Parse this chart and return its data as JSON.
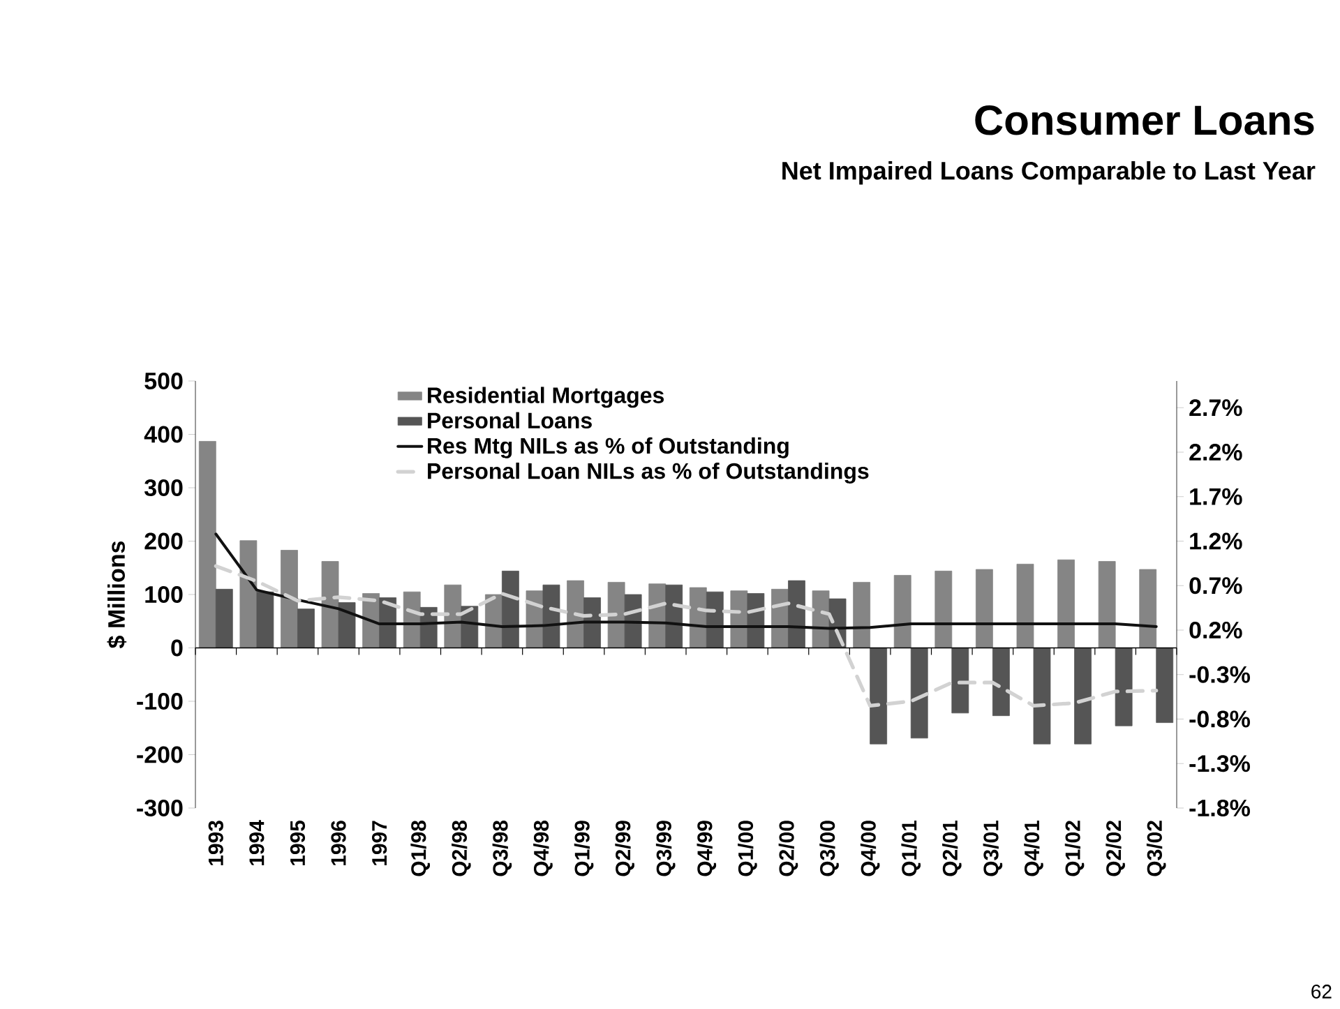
{
  "chart_data": {
    "type": "bar",
    "title": "Consumer Loans",
    "subtitle": "Net Impaired Loans Comparable to Last Year",
    "ylabel": "$ Millions",
    "categories": [
      "1993",
      "1994",
      "1995",
      "1996",
      "1997",
      "Q1/98",
      "Q2/98",
      "Q3/98",
      "Q4/98",
      "Q1/99",
      "Q2/99",
      "Q3/99",
      "Q4/99",
      "Q1/00",
      "Q2/00",
      "Q3/00",
      "Q4/00",
      "Q1/01",
      "Q2/01",
      "Q3/01",
      "Q4/01",
      "Q1/02",
      "Q2/02",
      "Q3/02"
    ],
    "series": [
      {
        "name": "Residential Mortgages",
        "color": "#858585",
        "values": [
          387,
          201,
          183,
          162,
          102,
          105,
          118,
          100,
          107,
          126,
          123,
          120,
          113,
          107,
          110,
          107,
          123,
          136,
          144,
          147,
          157,
          165,
          162,
          147
        ]
      },
      {
        "name": "Personal Loans",
        "color": "#555555",
        "values": [
          110,
          105,
          73,
          85,
          94,
          76,
          78,
          144,
          118,
          94,
          100,
          118,
          105,
          102,
          126,
          92,
          -180,
          -169,
          -122,
          -127,
          -180,
          -180,
          -146,
          -140
        ]
      },
      {
        "name": "Res Mtg NILs as % of Outstanding",
        "type": "line",
        "axis": "y2",
        "color": "#111111",
        "line_style": "solid",
        "values": [
          1.28,
          0.65,
          0.54,
          0.44,
          0.27,
          0.27,
          0.29,
          0.24,
          0.25,
          0.29,
          0.29,
          0.28,
          0.24,
          0.24,
          0.24,
          0.22,
          0.23,
          0.27,
          0.27,
          0.27,
          0.27,
          0.27,
          0.27,
          0.24
        ]
      },
      {
        "name": "Personal Loan NILs as % of Outstandings",
        "type": "line",
        "axis": "y2",
        "color": "#d2d2d2",
        "line_style": "dashed",
        "values": [
          0.92,
          0.75,
          0.53,
          0.57,
          0.53,
          0.38,
          0.38,
          0.61,
          0.46,
          0.36,
          0.38,
          0.5,
          0.42,
          0.4,
          0.5,
          0.38,
          -0.65,
          -0.6,
          -0.39,
          -0.39,
          -0.65,
          -0.62,
          -0.49,
          -0.48
        ]
      }
    ],
    "ylim": [
      -300,
      500
    ],
    "yticks": [
      -300,
      -200,
      -100,
      0,
      100,
      200,
      300,
      400,
      500
    ],
    "y2lim": [
      -1.8,
      3.0
    ],
    "y2ticks": [
      {
        "value": -1.8,
        "label": "-1.8%"
      },
      {
        "value": -1.3,
        "label": "-1.3%"
      },
      {
        "value": -0.8,
        "label": "-0.8%"
      },
      {
        "value": -0.3,
        "label": "-0.3%"
      },
      {
        "value": 0.2,
        "label": "0.2%"
      },
      {
        "value": 0.7,
        "label": "0.7%"
      },
      {
        "value": 1.2,
        "label": "1.2%"
      },
      {
        "value": 1.7,
        "label": "1.7%"
      },
      {
        "value": 2.2,
        "label": "2.2%"
      },
      {
        "value": 2.7,
        "label": "2.7%"
      }
    ],
    "legend": "top",
    "marker": "none",
    "annotations": [
      "62"
    ]
  }
}
